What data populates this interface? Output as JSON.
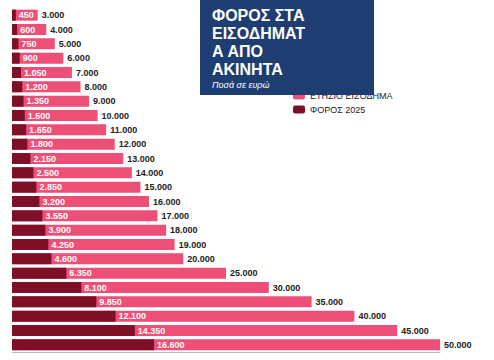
{
  "chart_data": {
    "type": "bar",
    "orientation": "horizontal",
    "title": "ΦΟΡΟΣ ΣΤΑ ΕΙΣΟΔΗΜΑΤΑ ΑΠΟ ΑΚΙΝΗΤΑ",
    "subtitle": "Ποσά σε ευρώ",
    "categories": [
      null,
      null,
      null,
      null,
      null,
      null,
      null,
      null,
      null,
      null,
      null,
      null,
      null,
      null,
      null,
      null,
      null,
      null,
      null,
      null,
      null,
      null,
      null,
      null
    ],
    "series": [
      {
        "name": "ΕΤΗΣΙΟ ΕΙΣΟΔΗΜΑ",
        "color": "#ee4f77",
        "values": [
          3000,
          4000,
          5000,
          6000,
          7000,
          8000,
          9000,
          10000,
          11000,
          12000,
          13000,
          14000,
          15000,
          16000,
          17000,
          18000,
          19000,
          20000,
          25000,
          30000,
          35000,
          40000,
          45000,
          50000
        ],
        "value_labels": [
          "3.000",
          "4.000",
          "5.000",
          "6.000",
          "7.000",
          "8.000",
          "9.000",
          "10.000",
          "11.000",
          "12.000",
          "13.000",
          "14.000",
          "15.000",
          "16.000",
          "17.000",
          "18.000",
          "19.000",
          "20.000",
          "25.000",
          "30.000",
          "35.000",
          "40.000",
          "45.000",
          "50.000"
        ]
      },
      {
        "name": "ΦΟΡΟΣ 2025",
        "color": "#7d1026",
        "values": [
          450,
          600,
          750,
          900,
          1050,
          1200,
          1350,
          1500,
          1650,
          1800,
          2150,
          2500,
          2850,
          3200,
          3550,
          3900,
          4250,
          4600,
          6350,
          8100,
          9850,
          12100,
          14350,
          16600
        ],
        "value_labels": [
          "450",
          "600",
          "750",
          "900",
          "1.050",
          "1.200",
          "1.350",
          "1.500",
          "1.650",
          "1.800",
          "2.150",
          "2.500",
          "2.850",
          "3.200",
          "3.550",
          "3.900",
          "4.250",
          "4.600",
          "6.350",
          "8.100",
          "9.850",
          "12.100",
          "14.350",
          "16.600"
        ]
      }
    ],
    "xlim": [
      0,
      50000
    ],
    "stacked": false,
    "data_labels": true,
    "tick_labels": false,
    "grid": false,
    "legend": "top-right"
  }
}
